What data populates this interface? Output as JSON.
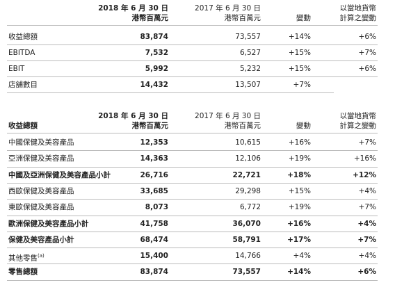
{
  "table1": {
    "header": [
      [
        "2018 年 6 月 30 日",
        "港幣百萬元"
      ],
      [
        "2017 年 6 月 30 日",
        "港幣百萬元"
      ],
      [
        "變動"
      ],
      [
        "以當地貨幣",
        "計算之變動"
      ]
    ],
    "rows": [
      {
        "cells": [
          "收益總額",
          "83,874",
          "73,557",
          "+14%",
          "+6%"
        ]
      },
      {
        "cells": [
          "EBITDA",
          "7,532",
          "6,527",
          "+15%",
          "+7%"
        ]
      },
      {
        "cells": [
          "EBIT",
          "5,992",
          "5,232",
          "+15%",
          "+6%"
        ]
      },
      {
        "cells": [
          "店舖數目",
          "14,432",
          "13,507",
          "+7%"
        ]
      }
    ]
  },
  "table2": {
    "title": "收益總額",
    "header": [
      [
        "2018 年 6 月 30 日",
        "港幣百萬元"
      ],
      [
        "2017 年 6 月 30 日",
        "港幣百萬元"
      ],
      [
        "變動"
      ],
      [
        "以當地貨幣",
        "計算之變動"
      ]
    ],
    "rows": [
      {
        "cells": [
          "中國保健及美容產品",
          "12,353",
          "10,615",
          "+16%",
          "+7%"
        ]
      },
      {
        "cells": [
          "亞洲保健及美容產品",
          "14,363",
          "12,106",
          "+19%",
          "+16%"
        ]
      },
      {
        "cells": [
          "中國及亞洲保健及美容產品小計",
          "26,716",
          "22,721",
          "+18%",
          "+12%"
        ],
        "bold": true
      },
      {
        "cells": [
          "西歐保健及美容產品",
          "33,685",
          "29,298",
          "+15%",
          "+4%"
        ]
      },
      {
        "cells": [
          "東歐保健及美容產品",
          "8,073",
          "6,772",
          "+19%",
          "+7%"
        ]
      },
      {
        "cells": [
          "歐洲保健及美容產品小計",
          "41,758",
          "36,070",
          "+16%",
          "+4%"
        ],
        "bold": true
      },
      {
        "cells": [
          "保健及美容產品小計",
          "68,474",
          "58,791",
          "+17%",
          "+7%"
        ],
        "bold": true
      },
      {
        "cells": [
          "其他零售",
          "15,400",
          "14,766",
          "+4%",
          "+4%"
        ],
        "mark": "(a)"
      },
      {
        "cells": [
          "零售總額",
          "83,874",
          "73,557",
          "+14%",
          "+6%"
        ],
        "bold": true
      }
    ]
  }
}
